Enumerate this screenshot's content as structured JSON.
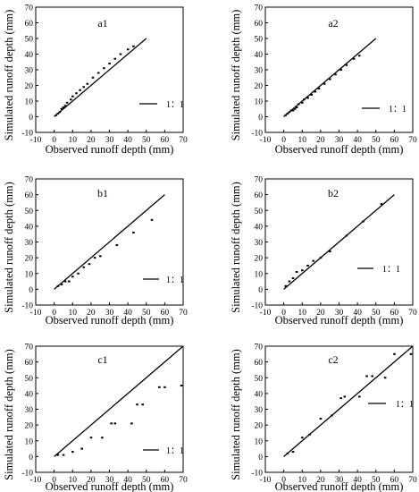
{
  "chart_data": [
    {
      "type": "scatter",
      "title": "a1",
      "xlabel": "Observed runoff depth (mm)",
      "ylabel": "Simulated runoff depth (mm)",
      "xlim": [
        -10,
        70
      ],
      "ylim": [
        -10,
        70
      ],
      "xticks": [
        "-10",
        "0",
        "10",
        "20",
        "30",
        "40",
        "50",
        "60",
        "70"
      ],
      "yticks": [
        "-10",
        "0",
        "10",
        "20",
        "30",
        "40",
        "50",
        "60",
        "70"
      ],
      "legend": "1：1",
      "legend_position": "right",
      "series": [
        {
          "x": [
            1,
            2,
            3,
            4,
            5,
            6,
            7,
            9,
            10,
            12,
            14,
            16,
            18,
            21,
            24,
            27,
            30,
            33,
            36,
            40,
            43
          ],
          "y": [
            1,
            2,
            3,
            5,
            6,
            7,
            9,
            11,
            13,
            15,
            17,
            19,
            21,
            25,
            28,
            31,
            34,
            37,
            40,
            43,
            45
          ]
        }
      ],
      "reference_line": [
        0,
        50
      ]
    },
    {
      "type": "scatter",
      "title": "a2",
      "xlabel": "Observed runoff depth (mm)",
      "ylabel": "Simulated runoff depth (mm)",
      "xlim": [
        -10,
        70
      ],
      "ylim": [
        -10,
        70
      ],
      "xticks": [
        "-10",
        "0",
        "10",
        "20",
        "30",
        "40",
        "50",
        "60",
        "70"
      ],
      "yticks": [
        "-10",
        "0",
        "10",
        "20",
        "30",
        "40",
        "50",
        "60",
        "70"
      ],
      "legend": "1：1",
      "legend_position": "right",
      "series": [
        {
          "x": [
            1,
            2,
            3,
            4,
            5,
            6,
            7,
            8,
            10,
            11,
            13,
            15,
            17,
            19,
            22,
            25,
            28,
            31,
            34,
            38,
            41
          ],
          "y": [
            1,
            2,
            3,
            4,
            4,
            5,
            6,
            8,
            9,
            11,
            12,
            14,
            16,
            18,
            21,
            24,
            27,
            30,
            33,
            37,
            39
          ]
        }
      ],
      "reference_line": [
        0,
        50
      ]
    },
    {
      "type": "scatter",
      "title": "b1",
      "xlabel": "Observed runoff depth (mm)",
      "ylabel": "Simulated runoff depth (mm)",
      "xlim": [
        -10,
        70
      ],
      "ylim": [
        -10,
        70
      ],
      "xticks": [
        "-10",
        "0",
        "10",
        "20",
        "30",
        "40",
        "50",
        "60",
        "70"
      ],
      "yticks": [
        "-10",
        "0",
        "10",
        "20",
        "30",
        "40",
        "50",
        "60",
        "70"
      ],
      "legend": "1：1",
      "legend_position": "right",
      "series": [
        {
          "x": [
            2,
            4,
            6,
            8,
            10,
            13,
            16,
            19,
            22,
            25,
            34,
            43,
            53
          ],
          "y": [
            2,
            3,
            5,
            5,
            8,
            10,
            14,
            16,
            20,
            21,
            28,
            36,
            44
          ]
        }
      ],
      "reference_line": [
        0,
        60
      ]
    },
    {
      "type": "scatter",
      "title": "b2",
      "xlabel": "Observed runoff depth (mm)",
      "ylabel": "Simulated runoff depth (mm)",
      "xlim": [
        -10,
        70
      ],
      "ylim": [
        -10,
        70
      ],
      "xticks": [
        "-10",
        "0",
        "10",
        "20",
        "30",
        "40",
        "50",
        "60",
        "70"
      ],
      "yticks": [
        "-10",
        "0",
        "10",
        "20",
        "30",
        "40",
        "50",
        "60",
        "70"
      ],
      "legend": "1：1",
      "legend_position": "right",
      "series": [
        {
          "x": [
            1,
            3,
            5,
            7,
            10,
            13,
            16,
            20,
            25,
            34,
            43,
            53
          ],
          "y": [
            2,
            5,
            7,
            11,
            12,
            15,
            18,
            20,
            24,
            34,
            43,
            54
          ]
        }
      ],
      "reference_line": [
        0,
        60
      ]
    },
    {
      "type": "scatter",
      "title": "c1",
      "xlabel": "Observed runoff depth (mm)",
      "ylabel": "Simulated runoff depth (mm)",
      "xlim": [
        -10,
        70
      ],
      "ylim": [
        -10,
        70
      ],
      "xticks": [
        "-10",
        "0",
        "10",
        "20",
        "30",
        "40",
        "50",
        "60",
        "70"
      ],
      "yticks": [
        "-10",
        "0",
        "10",
        "20",
        "30",
        "40",
        "50",
        "60",
        "70"
      ],
      "legend": "1：1",
      "legend_position": "right",
      "series": [
        {
          "x": [
            2,
            5,
            10,
            15,
            20,
            26,
            31,
            33,
            42,
            45,
            48,
            57,
            60,
            69
          ],
          "y": [
            1,
            1,
            3,
            5,
            12,
            12,
            21,
            21,
            21,
            33,
            33,
            44,
            44,
            45
          ]
        }
      ],
      "reference_line": [
        0,
        70
      ]
    },
    {
      "type": "scatter",
      "title": "c2",
      "xlabel": "Observed runoff depth (mm)",
      "ylabel": "Simulated runoff depth (mm)",
      "xlim": [
        -10,
        70
      ],
      "ylim": [
        -10,
        70
      ],
      "xticks": [
        "-10",
        "0",
        "10",
        "20",
        "30",
        "40",
        "50",
        "60",
        "70"
      ],
      "yticks": [
        "-10",
        "0",
        "10",
        "20",
        "30",
        "40",
        "50",
        "60",
        "70"
      ],
      "legend": "1：1",
      "legend_position": "right",
      "series": [
        {
          "x": [
            2,
            5,
            10,
            14,
            20,
            26,
            31,
            33,
            41,
            45,
            48,
            55,
            60,
            69
          ],
          "y": [
            2,
            3,
            12,
            14,
            24,
            26,
            37,
            38,
            38,
            51,
            51,
            50,
            65,
            65
          ]
        }
      ],
      "reference_line": [
        0,
        70
      ]
    }
  ]
}
